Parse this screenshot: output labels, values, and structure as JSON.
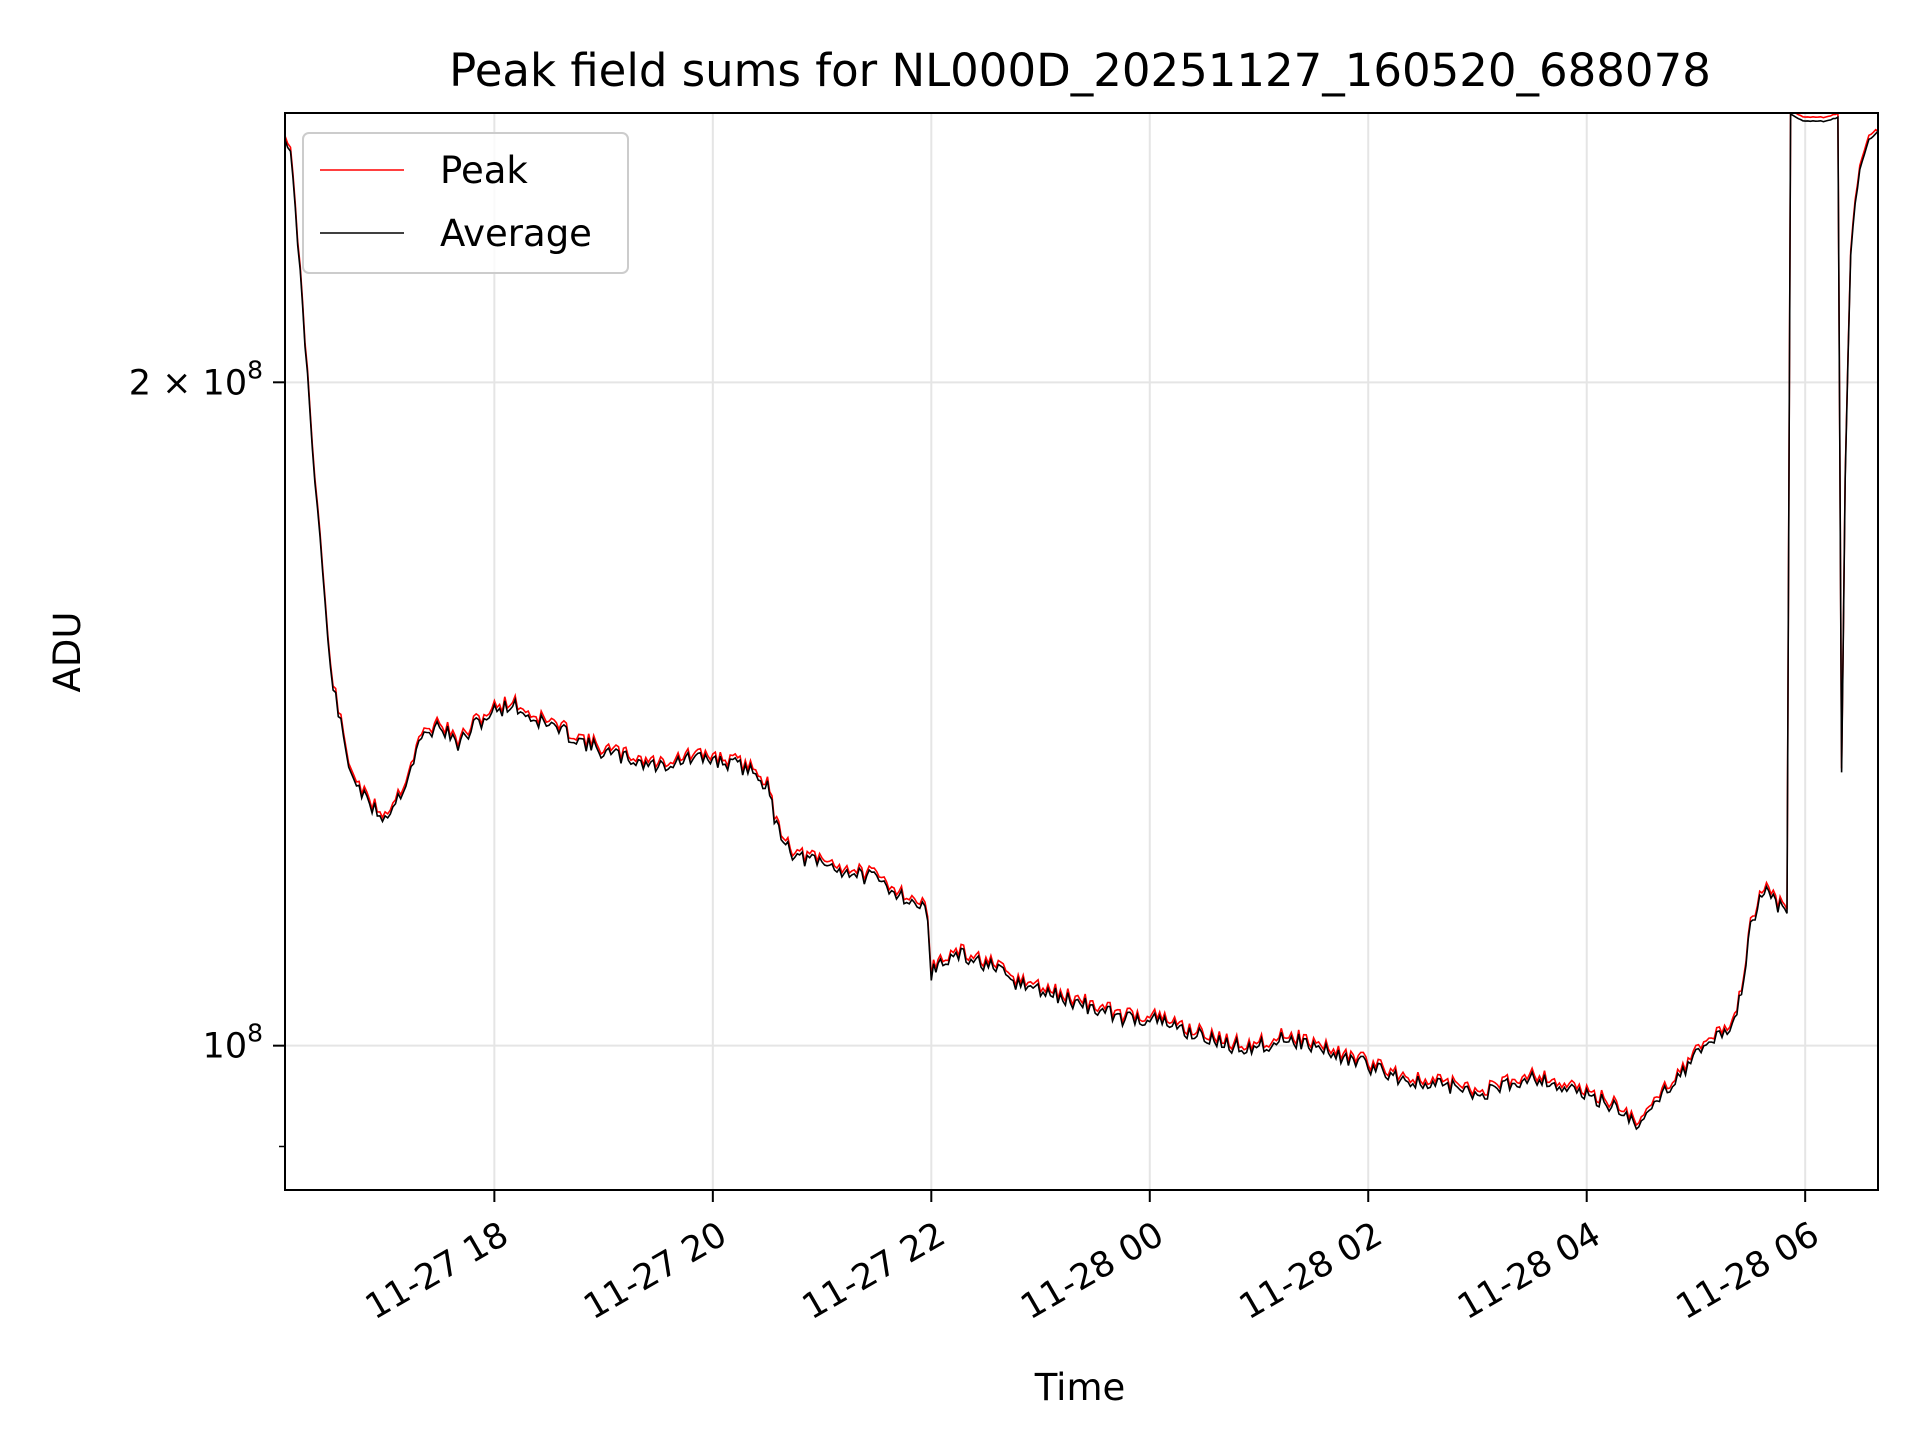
{
  "chart_data": {
    "type": "line",
    "title": "Peak field sums for NL000D_20251127_160520_688078",
    "xlabel": "Time",
    "ylabel": "ADU",
    "yscale": "log",
    "xlim": [
      "2025-11-27 16:05",
      "2025-11-28 06:40"
    ],
    "ylim": [
      86000000,
      265000000
    ],
    "grid": true,
    "legend_position": "upper-left",
    "x_ticks": [
      {
        "value": "2025-11-27 18:00",
        "label": "11-27 18"
      },
      {
        "value": "2025-11-27 20:00",
        "label": "11-27 20"
      },
      {
        "value": "2025-11-27 22:00",
        "label": "11-27 22"
      },
      {
        "value": "2025-11-28 00:00",
        "label": "11-28 00"
      },
      {
        "value": "2025-11-28 02:00",
        "label": "11-28 02"
      },
      {
        "value": "2025-11-28 04:00",
        "label": "11-28 04"
      },
      {
        "value": "2025-11-28 06:00",
        "label": "11-28 06"
      }
    ],
    "y_ticks": [
      {
        "value": 100000000,
        "base": "10",
        "exp": "8",
        "prefix": ""
      },
      {
        "value": 200000000,
        "base": "10",
        "exp": "8",
        "prefix": "2 × "
      }
    ],
    "series": [
      {
        "name": "Peak",
        "color": "#ff0000"
      },
      {
        "name": "Average",
        "color": "#000000"
      }
    ],
    "x": [
      "2025-11-27 16:05",
      "2025-11-27 16:08",
      "2025-11-27 16:12",
      "2025-11-27 16:20",
      "2025-11-27 16:30",
      "2025-11-27 16:40",
      "2025-11-27 16:50",
      "2025-11-27 17:00",
      "2025-11-27 17:10",
      "2025-11-27 17:20",
      "2025-11-27 17:30",
      "2025-11-27 17:40",
      "2025-11-27 17:50",
      "2025-11-27 18:00",
      "2025-11-27 18:10",
      "2025-11-27 18:20",
      "2025-11-27 18:30",
      "2025-11-27 18:45",
      "2025-11-27 19:00",
      "2025-11-27 19:15",
      "2025-11-27 19:30",
      "2025-11-27 19:45",
      "2025-11-27 20:00",
      "2025-11-27 20:15",
      "2025-11-27 20:25",
      "2025-11-27 20:30",
      "2025-11-27 20:35",
      "2025-11-27 20:40",
      "2025-11-27 20:45",
      "2025-11-27 21:00",
      "2025-11-27 21:15",
      "2025-11-27 21:30",
      "2025-11-27 21:45",
      "2025-11-27 21:58",
      "2025-11-27 22:00",
      "2025-11-27 22:05",
      "2025-11-27 22:15",
      "2025-11-27 22:30",
      "2025-11-27 22:45",
      "2025-11-27 23:00",
      "2025-11-27 23:15",
      "2025-11-27 23:30",
      "2025-11-27 23:45",
      "2025-11-28 00:00",
      "2025-11-28 00:15",
      "2025-11-28 00:30",
      "2025-11-28 00:45",
      "2025-11-28 01:00",
      "2025-11-28 01:15",
      "2025-11-28 01:30",
      "2025-11-28 01:45",
      "2025-11-28 02:00",
      "2025-11-28 02:15",
      "2025-11-28 02:30",
      "2025-11-28 02:45",
      "2025-11-28 03:00",
      "2025-11-28 03:15",
      "2025-11-28 03:30",
      "2025-11-28 03:45",
      "2025-11-28 04:00",
      "2025-11-28 04:15",
      "2025-11-28 04:30",
      "2025-11-28 04:40",
      "2025-11-28 04:50",
      "2025-11-28 05:00",
      "2025-11-28 05:10",
      "2025-11-28 05:20",
      "2025-11-28 05:25",
      "2025-11-28 05:30",
      "2025-11-28 05:35",
      "2025-11-28 05:40",
      "2025-11-28 05:45",
      "2025-11-28 05:50",
      "2025-11-28 05:52",
      "2025-11-28 05:55",
      "2025-11-28 06:00",
      "2025-11-28 06:10",
      "2025-11-28 06:18",
      "2025-11-28 06:20",
      "2025-11-28 06:22",
      "2025-11-28 06:25",
      "2025-11-28 06:30",
      "2025-11-28 06:35",
      "2025-11-28 06:40"
    ],
    "y": [
      258000000,
      254000000,
      232000000,
      188000000,
      148000000,
      134000000,
      129000000,
      127000000,
      131000000,
      138000000,
      140000000,
      137000000,
      140000000,
      142000000,
      143000000,
      141000000,
      140000000,
      138000000,
      136000000,
      135000000,
      134000000,
      135000000,
      135000000,
      134000000,
      133000000,
      131000000,
      126000000,
      124000000,
      122000000,
      121000000,
      120000000,
      119000000,
      117000000,
      115000000,
      108000000,
      109000000,
      110000000,
      109000000,
      107000000,
      106000000,
      105000000,
      104000000,
      103000000,
      103000000,
      102000000,
      101000000,
      100000000,
      100000000,
      101000000,
      100000000,
      99000000,
      98000000,
      97000000,
      96000000,
      96000000,
      95000000,
      96000000,
      97000000,
      96000000,
      95000000,
      94000000,
      92000000,
      95000000,
      97000000,
      99000000,
      101000000,
      102000000,
      106000000,
      113000000,
      117000000,
      118000000,
      116000000,
      115000000,
      265000000,
      264000000,
      263000000,
      263000000,
      264000000,
      133000000,
      180000000,
      230000000,
      250000000,
      258000000,
      260000000
    ]
  }
}
